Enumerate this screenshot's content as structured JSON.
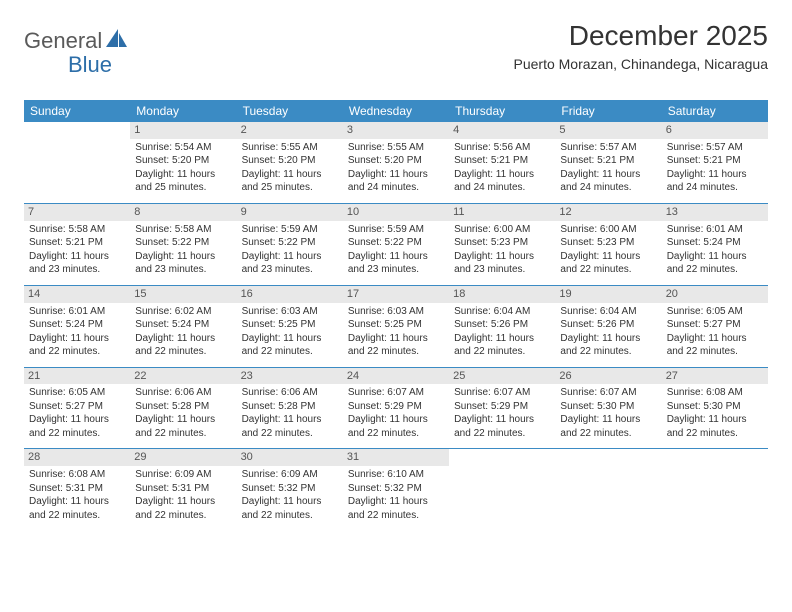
{
  "brand": {
    "text_general": "General",
    "text_blue": "Blue"
  },
  "title": "December 2025",
  "location": "Puerto Morazan, Chinandega, Nicaragua",
  "colors": {
    "header_bg": "#3b8bc4",
    "header_text": "#ffffff",
    "daynum_bg": "#e8e8e8",
    "daynum_text": "#555555",
    "body_text": "#333333",
    "row_sep": "#3b8bc4",
    "logo_gray": "#5a5a5a",
    "logo_blue": "#2d6ea8"
  },
  "typography": {
    "title_fontsize": 28,
    "location_fontsize": 14,
    "dayheader_fontsize": 12,
    "cell_fontsize": 10,
    "daynum_fontsize": 11
  },
  "day_headers": [
    "Sunday",
    "Monday",
    "Tuesday",
    "Wednesday",
    "Thursday",
    "Friday",
    "Saturday"
  ],
  "weeks": [
    [
      {
        "blank": true
      },
      {
        "n": "1",
        "sr": "Sunrise: 5:54 AM",
        "ss": "Sunset: 5:20 PM",
        "d1": "Daylight: 11 hours",
        "d2": "and 25 minutes."
      },
      {
        "n": "2",
        "sr": "Sunrise: 5:55 AM",
        "ss": "Sunset: 5:20 PM",
        "d1": "Daylight: 11 hours",
        "d2": "and 25 minutes."
      },
      {
        "n": "3",
        "sr": "Sunrise: 5:55 AM",
        "ss": "Sunset: 5:20 PM",
        "d1": "Daylight: 11 hours",
        "d2": "and 24 minutes."
      },
      {
        "n": "4",
        "sr": "Sunrise: 5:56 AM",
        "ss": "Sunset: 5:21 PM",
        "d1": "Daylight: 11 hours",
        "d2": "and 24 minutes."
      },
      {
        "n": "5",
        "sr": "Sunrise: 5:57 AM",
        "ss": "Sunset: 5:21 PM",
        "d1": "Daylight: 11 hours",
        "d2": "and 24 minutes."
      },
      {
        "n": "6",
        "sr": "Sunrise: 5:57 AM",
        "ss": "Sunset: 5:21 PM",
        "d1": "Daylight: 11 hours",
        "d2": "and 24 minutes."
      }
    ],
    [
      {
        "n": "7",
        "sr": "Sunrise: 5:58 AM",
        "ss": "Sunset: 5:21 PM",
        "d1": "Daylight: 11 hours",
        "d2": "and 23 minutes."
      },
      {
        "n": "8",
        "sr": "Sunrise: 5:58 AM",
        "ss": "Sunset: 5:22 PM",
        "d1": "Daylight: 11 hours",
        "d2": "and 23 minutes."
      },
      {
        "n": "9",
        "sr": "Sunrise: 5:59 AM",
        "ss": "Sunset: 5:22 PM",
        "d1": "Daylight: 11 hours",
        "d2": "and 23 minutes."
      },
      {
        "n": "10",
        "sr": "Sunrise: 5:59 AM",
        "ss": "Sunset: 5:22 PM",
        "d1": "Daylight: 11 hours",
        "d2": "and 23 minutes."
      },
      {
        "n": "11",
        "sr": "Sunrise: 6:00 AM",
        "ss": "Sunset: 5:23 PM",
        "d1": "Daylight: 11 hours",
        "d2": "and 23 minutes."
      },
      {
        "n": "12",
        "sr": "Sunrise: 6:00 AM",
        "ss": "Sunset: 5:23 PM",
        "d1": "Daylight: 11 hours",
        "d2": "and 22 minutes."
      },
      {
        "n": "13",
        "sr": "Sunrise: 6:01 AM",
        "ss": "Sunset: 5:24 PM",
        "d1": "Daylight: 11 hours",
        "d2": "and 22 minutes."
      }
    ],
    [
      {
        "n": "14",
        "sr": "Sunrise: 6:01 AM",
        "ss": "Sunset: 5:24 PM",
        "d1": "Daylight: 11 hours",
        "d2": "and 22 minutes."
      },
      {
        "n": "15",
        "sr": "Sunrise: 6:02 AM",
        "ss": "Sunset: 5:24 PM",
        "d1": "Daylight: 11 hours",
        "d2": "and 22 minutes."
      },
      {
        "n": "16",
        "sr": "Sunrise: 6:03 AM",
        "ss": "Sunset: 5:25 PM",
        "d1": "Daylight: 11 hours",
        "d2": "and 22 minutes."
      },
      {
        "n": "17",
        "sr": "Sunrise: 6:03 AM",
        "ss": "Sunset: 5:25 PM",
        "d1": "Daylight: 11 hours",
        "d2": "and 22 minutes."
      },
      {
        "n": "18",
        "sr": "Sunrise: 6:04 AM",
        "ss": "Sunset: 5:26 PM",
        "d1": "Daylight: 11 hours",
        "d2": "and 22 minutes."
      },
      {
        "n": "19",
        "sr": "Sunrise: 6:04 AM",
        "ss": "Sunset: 5:26 PM",
        "d1": "Daylight: 11 hours",
        "d2": "and 22 minutes."
      },
      {
        "n": "20",
        "sr": "Sunrise: 6:05 AM",
        "ss": "Sunset: 5:27 PM",
        "d1": "Daylight: 11 hours",
        "d2": "and 22 minutes."
      }
    ],
    [
      {
        "n": "21",
        "sr": "Sunrise: 6:05 AM",
        "ss": "Sunset: 5:27 PM",
        "d1": "Daylight: 11 hours",
        "d2": "and 22 minutes."
      },
      {
        "n": "22",
        "sr": "Sunrise: 6:06 AM",
        "ss": "Sunset: 5:28 PM",
        "d1": "Daylight: 11 hours",
        "d2": "and 22 minutes."
      },
      {
        "n": "23",
        "sr": "Sunrise: 6:06 AM",
        "ss": "Sunset: 5:28 PM",
        "d1": "Daylight: 11 hours",
        "d2": "and 22 minutes."
      },
      {
        "n": "24",
        "sr": "Sunrise: 6:07 AM",
        "ss": "Sunset: 5:29 PM",
        "d1": "Daylight: 11 hours",
        "d2": "and 22 minutes."
      },
      {
        "n": "25",
        "sr": "Sunrise: 6:07 AM",
        "ss": "Sunset: 5:29 PM",
        "d1": "Daylight: 11 hours",
        "d2": "and 22 minutes."
      },
      {
        "n": "26",
        "sr": "Sunrise: 6:07 AM",
        "ss": "Sunset: 5:30 PM",
        "d1": "Daylight: 11 hours",
        "d2": "and 22 minutes."
      },
      {
        "n": "27",
        "sr": "Sunrise: 6:08 AM",
        "ss": "Sunset: 5:30 PM",
        "d1": "Daylight: 11 hours",
        "d2": "and 22 minutes."
      }
    ],
    [
      {
        "n": "28",
        "sr": "Sunrise: 6:08 AM",
        "ss": "Sunset: 5:31 PM",
        "d1": "Daylight: 11 hours",
        "d2": "and 22 minutes."
      },
      {
        "n": "29",
        "sr": "Sunrise: 6:09 AM",
        "ss": "Sunset: 5:31 PM",
        "d1": "Daylight: 11 hours",
        "d2": "and 22 minutes."
      },
      {
        "n": "30",
        "sr": "Sunrise: 6:09 AM",
        "ss": "Sunset: 5:32 PM",
        "d1": "Daylight: 11 hours",
        "d2": "and 22 minutes."
      },
      {
        "n": "31",
        "sr": "Sunrise: 6:10 AM",
        "ss": "Sunset: 5:32 PM",
        "d1": "Daylight: 11 hours",
        "d2": "and 22 minutes."
      },
      {
        "blank": true
      },
      {
        "blank": true
      },
      {
        "blank": true
      }
    ]
  ]
}
